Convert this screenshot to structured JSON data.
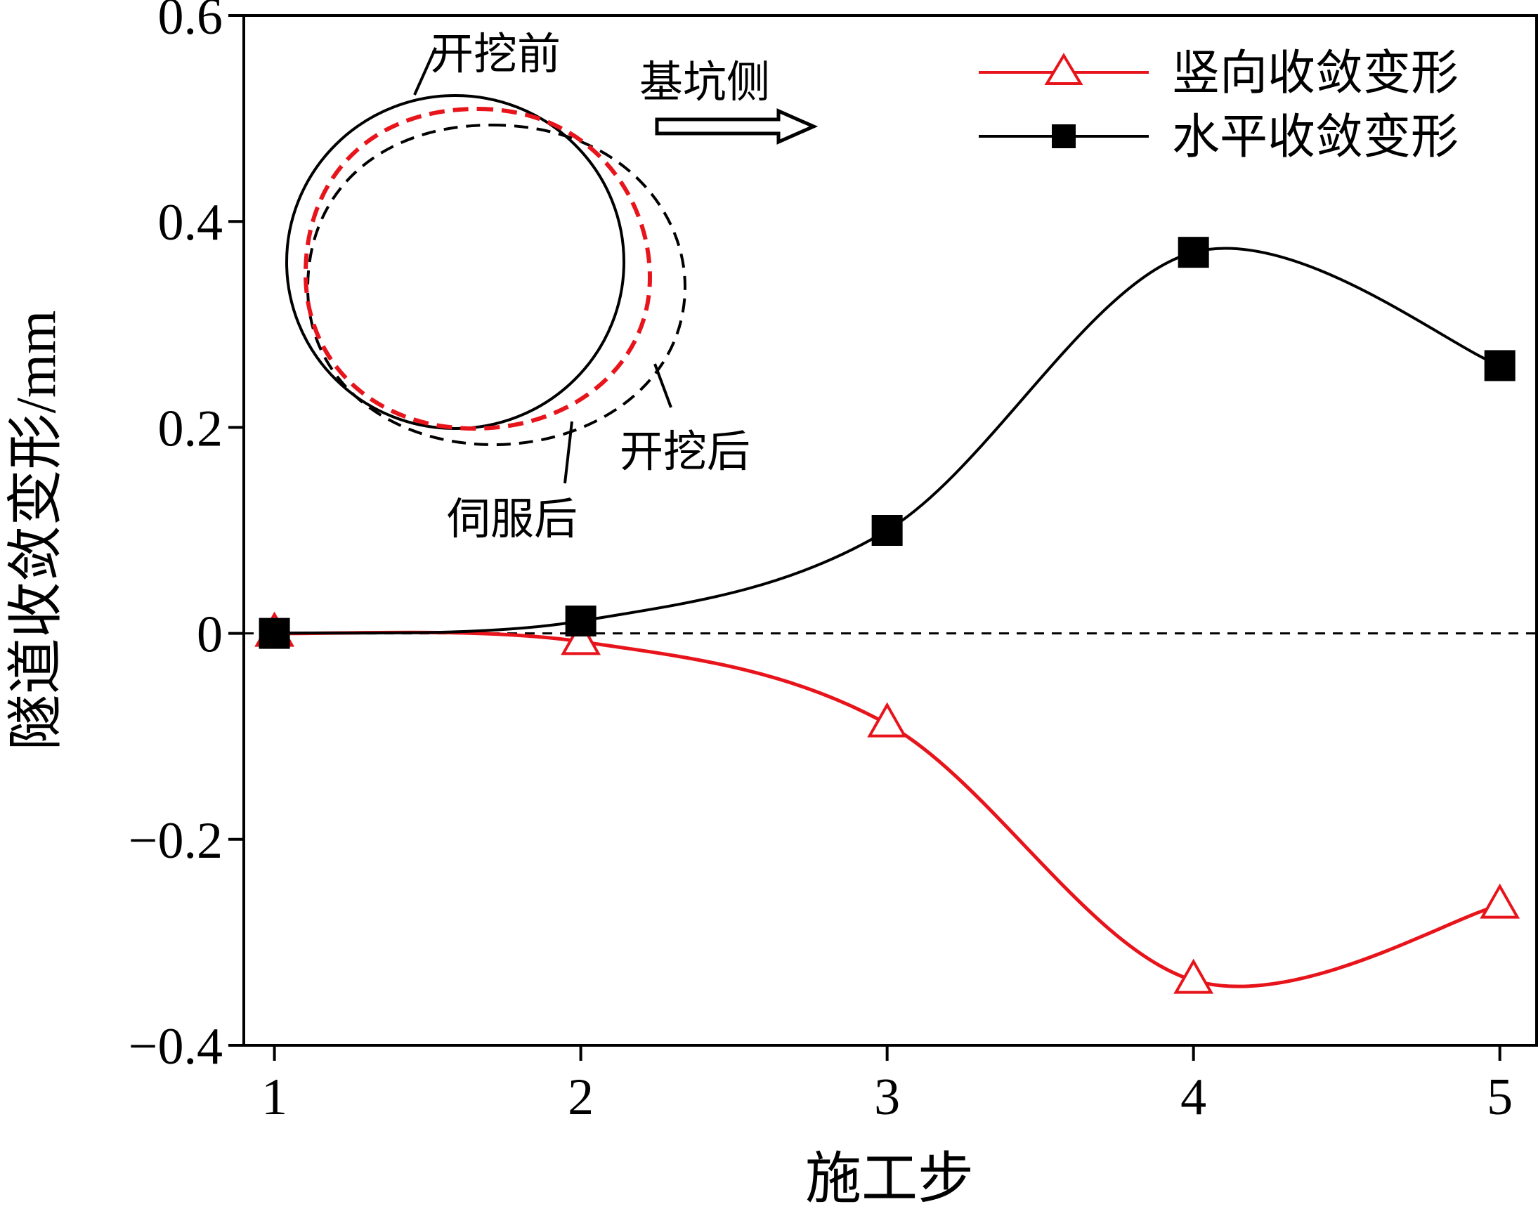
{
  "chart_data": {
    "type": "line",
    "xlabel": "施工步",
    "ylabel": "隧道收敛变形/mm",
    "x": [
      1,
      2,
      3,
      4,
      5
    ],
    "xlim": [
      0.9,
      5.12
    ],
    "ylim": [
      -0.4,
      0.6
    ],
    "xticks": [
      "1",
      "2",
      "3",
      "4",
      "5"
    ],
    "yticks": [
      "−0.4",
      "−0.2",
      "0",
      "0.2",
      "0.4",
      "0.6"
    ],
    "ytick_values": [
      -0.4,
      -0.2,
      0,
      0.2,
      0.4,
      0.6
    ],
    "reference_line": 0,
    "grid": false,
    "legend_position": "top-right",
    "series": [
      {
        "name": "竖向收敛变形",
        "values": [
          0.0,
          -0.008,
          -0.088,
          -0.337,
          -0.264
        ],
        "color": "#e8141b",
        "marker": "triangle-open"
      },
      {
        "name": "水平收敛变形",
        "values": [
          0.0,
          0.012,
          0.1,
          0.37,
          0.26
        ],
        "color": "#000000",
        "marker": "square-filled"
      }
    ],
    "inset": {
      "labels": {
        "before": "开挖前",
        "after_excavation": "开挖后",
        "after_servo": "伺服后",
        "direction": "基坑侧"
      }
    }
  }
}
